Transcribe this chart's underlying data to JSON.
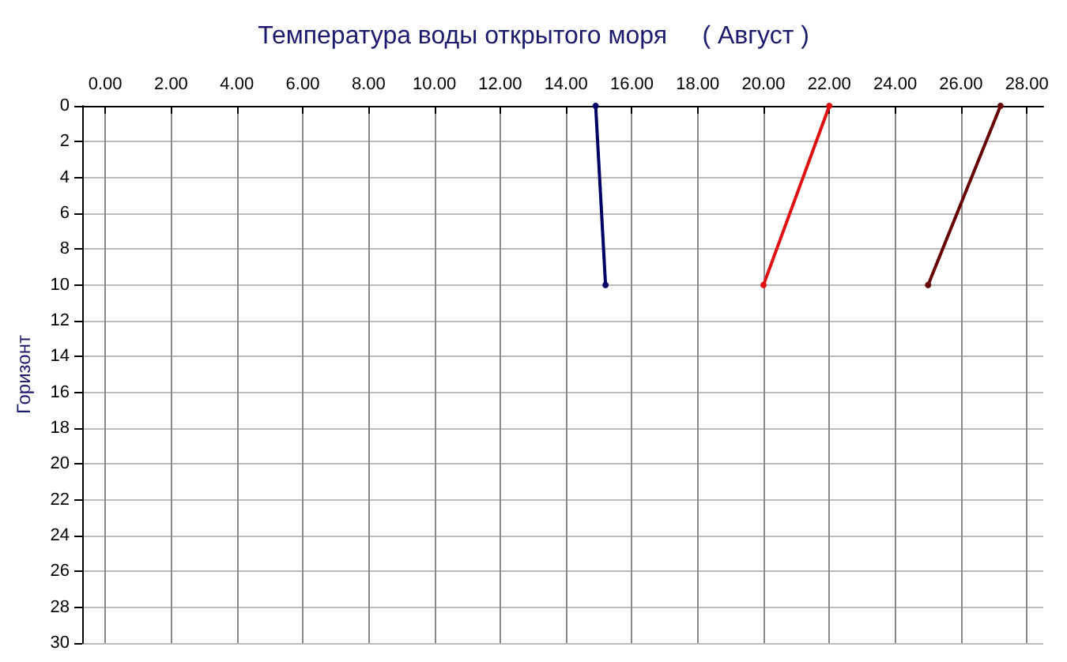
{
  "chart_data": {
    "type": "line",
    "title": "Температура воды открытого моря     ( Август )",
    "ylabel": "Горизонт",
    "series": [
      {
        "color": "#000066",
        "x": [
          14.9,
          15.2
        ],
        "values": [
          0,
          10
        ]
      },
      {
        "color": "#e01010",
        "x": [
          22.0,
          20.0
        ],
        "values": [
          0,
          10
        ]
      },
      {
        "color": "#660000",
        "x": [
          27.2,
          25.0
        ],
        "values": [
          0,
          10
        ]
      }
    ],
    "xlim": [
      -0.7,
      28.5
    ],
    "xticks": [
      {
        "value": 0,
        "label": "0.00"
      },
      {
        "value": 2,
        "label": "2.00"
      },
      {
        "value": 4,
        "label": "4.00"
      },
      {
        "value": 6,
        "label": "6.00"
      },
      {
        "value": 8,
        "label": "8.00"
      },
      {
        "value": 10,
        "label": "10.00"
      },
      {
        "value": 12,
        "label": "12.00"
      },
      {
        "value": 14,
        "label": "14.00"
      },
      {
        "value": 16,
        "label": "16.00"
      },
      {
        "value": 18,
        "label": "18.00"
      },
      {
        "value": 20,
        "label": "20.00"
      },
      {
        "value": 22,
        "label": "22.00"
      },
      {
        "value": 24,
        "label": "24.00"
      },
      {
        "value": 26,
        "label": "26.00"
      },
      {
        "value": 28,
        "label": "28.00"
      }
    ],
    "ylim": [
      30,
      0
    ],
    "yticks": [
      0,
      2,
      4,
      6,
      8,
      10,
      12,
      14,
      16,
      18,
      20,
      22,
      24,
      26,
      28,
      30
    ],
    "grid": true,
    "marker": "circle",
    "line_style": "solid"
  }
}
